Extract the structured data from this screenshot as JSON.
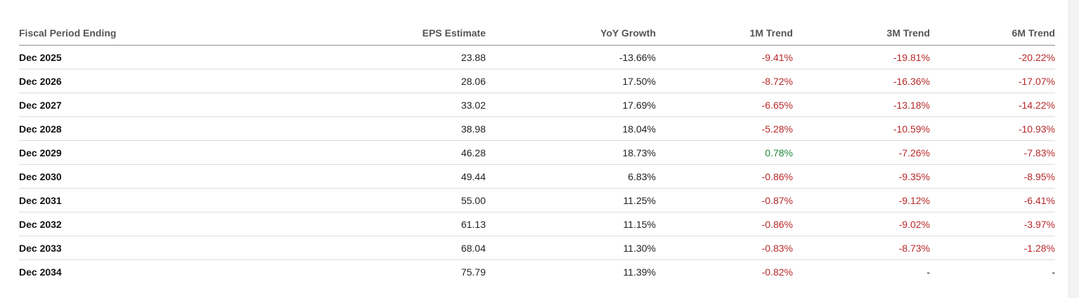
{
  "table": {
    "headers": [
      "Fiscal Period Ending",
      "EPS Estimate",
      "YoY Growth",
      "1M Trend",
      "3M Trend",
      "6M Trend"
    ],
    "rows": [
      [
        "Dec 2025",
        "23.88",
        "-13.66%",
        "-9.41%",
        "-19.81%",
        "-20.22%"
      ],
      [
        "Dec 2026",
        "28.06",
        "17.50%",
        "-8.72%",
        "-16.36%",
        "-17.07%"
      ],
      [
        "Dec 2027",
        "33.02",
        "17.69%",
        "-6.65%",
        "-13.18%",
        "-14.22%"
      ],
      [
        "Dec 2028",
        "38.98",
        "18.04%",
        "-5.28%",
        "-10.59%",
        "-10.93%"
      ],
      [
        "Dec 2029",
        "46.28",
        "18.73%",
        "0.78%",
        "-7.26%",
        "-7.83%"
      ],
      [
        "Dec 2030",
        "49.44",
        "6.83%",
        "-0.86%",
        "-9.35%",
        "-8.95%"
      ],
      [
        "Dec 2031",
        "55.00",
        "11.25%",
        "-0.87%",
        "-9.12%",
        "-6.41%"
      ],
      [
        "Dec 2032",
        "61.13",
        "11.15%",
        "-0.86%",
        "-9.02%",
        "-3.97%"
      ],
      [
        "Dec 2033",
        "68.04",
        "11.30%",
        "-0.83%",
        "-8.73%",
        "-1.28%"
      ],
      [
        "Dec 2034",
        "75.79",
        "11.39%",
        "-0.82%",
        "-",
        "-"
      ]
    ]
  },
  "colors": {
    "negative": "#b8282a",
    "positive": "#1f8a3c"
  }
}
